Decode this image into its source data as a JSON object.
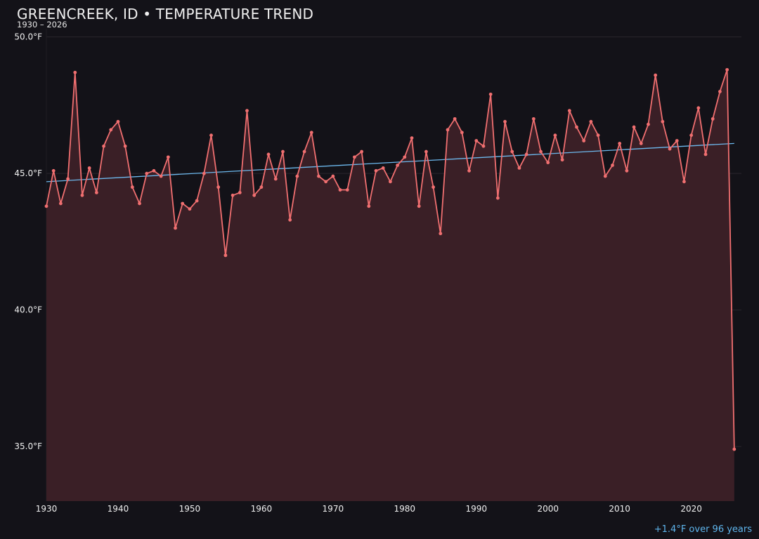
{
  "chart_data": {
    "type": "line",
    "title": "GREENCREEK, ID • TEMPERATURE TREND",
    "subtitle": "1930 – 2026",
    "annotation": "+1.4°F over 96 years",
    "xlabel": "",
    "ylabel": "",
    "xlim": [
      1930,
      2027
    ],
    "ylim": [
      33,
      50.3
    ],
    "x_ticks": [
      1930,
      1940,
      1950,
      1960,
      1970,
      1980,
      1990,
      2000,
      2010,
      2020
    ],
    "x_tick_labels": [
      "1930",
      "1940",
      "1950",
      "1960",
      "1970",
      "1980",
      "1990",
      "2000",
      "2010",
      "2020"
    ],
    "y_ticks": [
      35,
      40,
      45,
      50
    ],
    "y_tick_labels": [
      "35.0°F",
      "40.0°F",
      "45.0°F",
      "50.0°F"
    ],
    "grid": true,
    "colors": {
      "background": "#131218",
      "series": "#f06f70",
      "fill": "#3a1f26",
      "trend": "#6db9ee",
      "grid": "#2a262c"
    },
    "series": [
      {
        "x": [
          1930,
          1931,
          1932,
          1933,
          1934,
          1935,
          1936,
          1937,
          1938,
          1939,
          1940,
          1941,
          1942,
          1943,
          1944,
          1945,
          1946,
          1947,
          1948,
          1949,
          1950,
          1951,
          1952,
          1953,
          1954,
          1955,
          1956,
          1957,
          1958,
          1959,
          1960,
          1961,
          1962,
          1963,
          1964,
          1965,
          1966,
          1967,
          1968,
          1969,
          1970,
          1971,
          1972,
          1973,
          1974,
          1975,
          1976,
          1977,
          1978,
          1979,
          1980,
          1981,
          1982,
          1983,
          1984,
          1985,
          1986,
          1987,
          1988,
          1989,
          1990,
          1991,
          1992,
          1993,
          1994,
          1995,
          1996,
          1997,
          1998,
          1999,
          2000,
          2001,
          2002,
          2003,
          2004,
          2005,
          2006,
          2007,
          2008,
          2009,
          2010,
          2011,
          2012,
          2013,
          2014,
          2015,
          2016,
          2017,
          2018,
          2019,
          2020,
          2021,
          2022,
          2023,
          2024,
          2025,
          2026
        ],
        "values": [
          43.8,
          45.1,
          43.9,
          44.8,
          48.7,
          44.2,
          45.2,
          44.3,
          46.0,
          46.6,
          46.9,
          46.0,
          44.5,
          43.9,
          45.0,
          45.1,
          44.9,
          45.6,
          43.0,
          43.9,
          43.7,
          44.0,
          45.0,
          46.4,
          44.5,
          42.0,
          44.2,
          44.3,
          47.3,
          44.2,
          44.5,
          45.7,
          44.8,
          45.8,
          43.3,
          44.9,
          45.8,
          46.5,
          44.9,
          44.7,
          44.9,
          44.4,
          44.4,
          45.6,
          45.8,
          43.8,
          45.1,
          45.2,
          44.7,
          45.3,
          45.6,
          46.3,
          43.8,
          45.8,
          44.5,
          42.8,
          46.6,
          47.0,
          46.5,
          45.1,
          46.2,
          46.0,
          47.9,
          44.1,
          46.9,
          45.8,
          45.2,
          45.7,
          47.0,
          45.8,
          45.4,
          46.4,
          45.5,
          47.3,
          46.7,
          46.2,
          46.9,
          46.4,
          44.9,
          45.3,
          46.1,
          45.1,
          46.7,
          46.1,
          46.8,
          48.6,
          46.9,
          45.9,
          46.2,
          44.7,
          46.4,
          47.4,
          45.7,
          47.0,
          48.0,
          48.8,
          34.9
        ]
      }
    ],
    "trend": {
      "x": [
        1930,
        2026
      ],
      "values": [
        44.7,
        46.1
      ]
    }
  }
}
